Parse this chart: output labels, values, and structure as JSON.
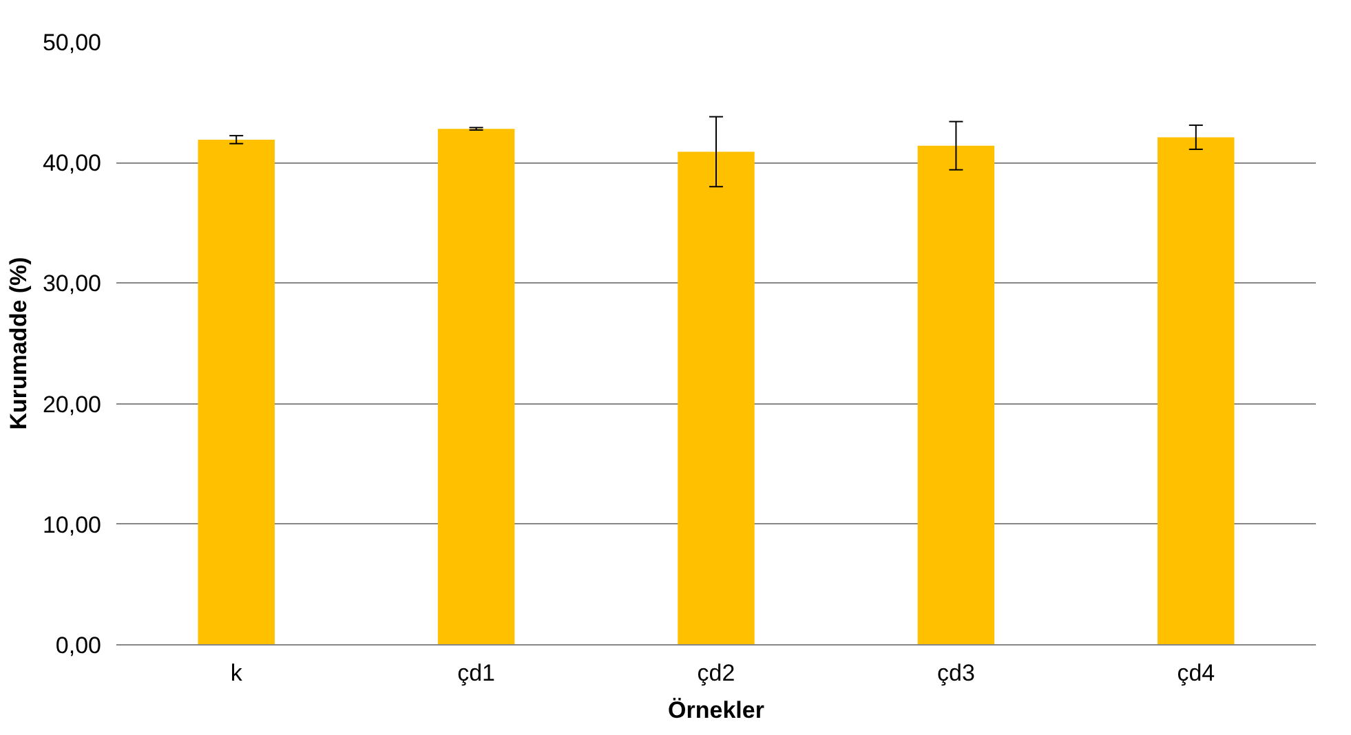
{
  "chart_data": {
    "type": "bar",
    "xlabel": "Örnekler",
    "ylabel": "Kurumadde (%)",
    "categories": [
      "k",
      "çd1",
      "çd2",
      "çd3",
      "çd4"
    ],
    "values": [
      41.9,
      42.8,
      40.9,
      41.4,
      42.1
    ],
    "errors": [
      0.33,
      0.1,
      2.9,
      2.0,
      1.0
    ],
    "color": "#ffc000",
    "ylim": [
      0,
      50
    ],
    "yticks": [
      {
        "value": 0,
        "label": "0,00"
      },
      {
        "value": 10,
        "label": "10,00"
      },
      {
        "value": 20,
        "label": "20,00"
      },
      {
        "value": 30,
        "label": "30,00"
      },
      {
        "value": 40,
        "label": "40,00"
      },
      {
        "value": 50,
        "label": "50,00"
      }
    ],
    "grid": "y"
  }
}
